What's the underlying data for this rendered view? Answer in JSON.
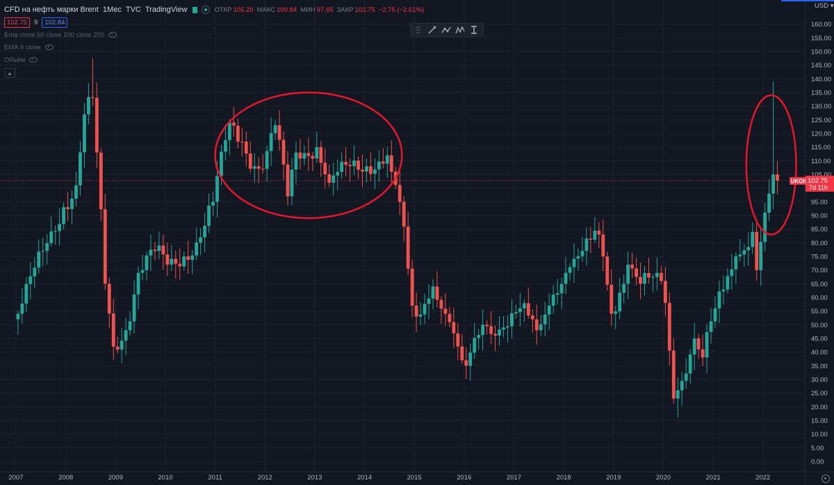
{
  "header": {
    "title": "CFD на нефть марки Brent",
    "interval": "1Мес",
    "source": "TVC",
    "provider": "TradingView",
    "ohlc": [
      {
        "label": "ОТКР",
        "value": "105.20"
      },
      {
        "label": "МАКС",
        "value": "109.84"
      },
      {
        "label": "МИН",
        "value": "97.65"
      },
      {
        "label": "ЗАКР",
        "value": "102.75"
      },
      {
        "label": "",
        "value": "−2.75 (−2.61%)"
      }
    ],
    "bid": "102.75",
    "spread": "9",
    "ask": "102.84"
  },
  "indicators": [
    "Ema close 50 close 100 close 200",
    "EMA 9 close",
    "Объём"
  ],
  "toolbar_icons": [
    "drag-handle-icon",
    "brush-icon",
    "path-icon",
    "pattern-icon",
    "measure-icon"
  ],
  "price_scale": {
    "currency": "USD",
    "ticker": "UKOIL",
    "last_price": "102.75",
    "time_left": "7d 11h"
  },
  "colors": {
    "background": "#131722",
    "up": "#26a69a",
    "down": "#ef5350",
    "annotation": "#e0182d",
    "last_price": "#f23645"
  },
  "chart_data": {
    "type": "candlestick",
    "symbol": "UKOIL",
    "x": [
      "2007",
      "2008",
      "2009",
      "2010",
      "2011",
      "2012",
      "2013",
      "2014",
      "2015",
      "2016",
      "2017",
      "2018",
      "2019",
      "2020",
      "2021",
      "2022"
    ],
    "ylim": [
      0,
      160
    ],
    "yticks": [
      0,
      5,
      10,
      15,
      20,
      25,
      30,
      35,
      40,
      45,
      50,
      55,
      60,
      65,
      70,
      75,
      80,
      85,
      90,
      95,
      100,
      105,
      110,
      115,
      120,
      125,
      130,
      135,
      140,
      145,
      150,
      155,
      160
    ],
    "anchor_points": [
      [
        "2007-01",
        54
      ],
      [
        "2007-07",
        77
      ],
      [
        "2007-12",
        93
      ],
      [
        "2008-03",
        101
      ],
      [
        "2008-05",
        127
      ],
      [
        "2008-07",
        133
      ],
      [
        "2008-08",
        113
      ],
      [
        "2008-10",
        65
      ],
      [
        "2008-12",
        42
      ],
      [
        "2009-03",
        48
      ],
      [
        "2009-06",
        69
      ],
      [
        "2009-10",
        77
      ],
      [
        "2010-01",
        72
      ],
      [
        "2010-05",
        75
      ],
      [
        "2010-09",
        82
      ],
      [
        "2010-12",
        95
      ],
      [
        "2011-04",
        124
      ],
      [
        "2011-07",
        117
      ],
      [
        "2011-10",
        108
      ],
      [
        "2011-12",
        107
      ],
      [
        "2012-03",
        123
      ],
      [
        "2012-06",
        97
      ],
      [
        "2012-08",
        113
      ],
      [
        "2013-01",
        115
      ],
      [
        "2013-04",
        102
      ],
      [
        "2013-09",
        108
      ],
      [
        "2014-01",
        108
      ],
      [
        "2014-06",
        112
      ],
      [
        "2014-07",
        106
      ],
      [
        "2014-09",
        95
      ],
      [
        "2014-12",
        57
      ],
      [
        "2015-01",
        53
      ],
      [
        "2015-05",
        64
      ],
      [
        "2015-08",
        54
      ],
      [
        "2015-12",
        37
      ],
      [
        "2016-01",
        35
      ],
      [
        "2016-05",
        50
      ],
      [
        "2016-10",
        49
      ],
      [
        "2017-02",
        56
      ],
      [
        "2017-06",
        48
      ],
      [
        "2017-10",
        61
      ],
      [
        "2018-01",
        69
      ],
      [
        "2018-05",
        77
      ],
      [
        "2018-09",
        83
      ],
      [
        "2018-10",
        75
      ],
      [
        "2018-12",
        54
      ],
      [
        "2019-04",
        72
      ],
      [
        "2019-07",
        65
      ],
      [
        "2019-12",
        66
      ],
      [
        "2020-01",
        58
      ],
      [
        "2020-03",
        23
      ],
      [
        "2020-04",
        26
      ],
      [
        "2020-08",
        45
      ],
      [
        "2020-10",
        38
      ],
      [
        "2021-01",
        56
      ],
      [
        "2021-06",
        75
      ],
      [
        "2021-10",
        84
      ],
      [
        "2021-11",
        70
      ],
      [
        "2022-01",
        91
      ],
      [
        "2022-02",
        98
      ],
      [
        "2022-03",
        105
      ],
      [
        "2022-04",
        102.75
      ]
    ],
    "annotations": [
      {
        "shape": "ellipse",
        "from": "2011-01",
        "to": "2014-10",
        "price_low": 89,
        "price_high": 135
      },
      {
        "shape": "circle",
        "from": "2021-09",
        "to": "2022-09",
        "price_low": 83,
        "price_high": 134
      }
    ]
  }
}
